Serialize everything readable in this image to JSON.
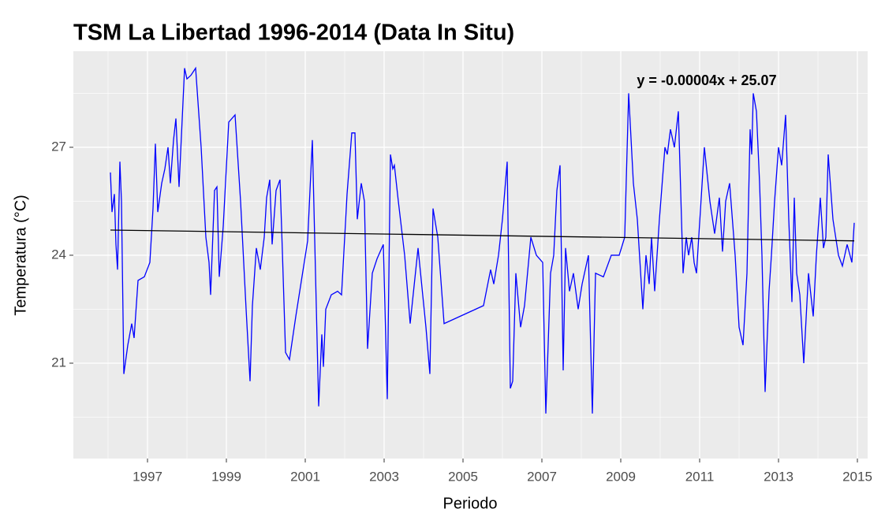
{
  "chart_data": {
    "type": "line",
    "title": "TSM La Libertad 1996-2014 (Data In Situ)",
    "x_label": "Periodo",
    "y_label": "Temperatura (°C)",
    "annotation": "y = -0.00004x + 25.07",
    "xlim": [
      1995.12,
      2015.26
    ],
    "ylim": [
      18.35,
      29.67
    ],
    "xticks": [
      1997,
      1999,
      2001,
      2003,
      2005,
      2007,
      2009,
      2011,
      2013,
      2015
    ],
    "x_minor_grid": [
      1996,
      1998,
      2000,
      2002,
      2004,
      2006,
      2008,
      2010,
      2012,
      2014
    ],
    "yticks": [
      21,
      24,
      27
    ],
    "y_minor_grid": [
      19.5,
      22.5,
      25.5,
      28.5
    ],
    "grid": true,
    "series": [
      {
        "color": "#0000ff",
        "x": [
          1996.06,
          1996.1,
          1996.16,
          1996.2,
          1996.24,
          1996.3,
          1996.34,
          1996.4,
          1996.5,
          1996.6,
          1996.66,
          1996.76,
          1996.92,
          1997.06,
          1997.14,
          1997.2,
          1997.26,
          1997.36,
          1997.44,
          1997.52,
          1997.58,
          1997.66,
          1997.72,
          1997.8,
          1997.94,
          1998.0,
          1998.1,
          1998.22,
          1998.36,
          1998.48,
          1998.56,
          1998.6,
          1998.7,
          1998.76,
          1998.82,
          1998.92,
          1999.06,
          1999.22,
          1999.36,
          1999.5,
          1999.6,
          1999.66,
          1999.76,
          1999.86,
          1999.96,
          2000.02,
          2000.1,
          2000.16,
          2000.26,
          2000.36,
          2000.42,
          2000.5,
          2000.6,
          2000.76,
          2001.06,
          2001.18,
          2001.34,
          2001.42,
          2001.46,
          2001.52,
          2001.66,
          2001.82,
          2001.92,
          2002.06,
          2002.18,
          2002.26,
          2002.32,
          2002.42,
          2002.5,
          2002.58,
          2002.7,
          2002.82,
          2002.98,
          2003.08,
          2003.16,
          2003.22,
          2003.26,
          2003.36,
          2003.52,
          2003.66,
          2003.86,
          2004.06,
          2004.16,
          2004.24,
          2004.36,
          2004.52,
          2005.52,
          2005.7,
          2005.78,
          2005.9,
          2006.0,
          2006.12,
          2006.2,
          2006.26,
          2006.34,
          2006.46,
          2006.56,
          2006.72,
          2006.86,
          2007.02,
          2007.1,
          2007.22,
          2007.3,
          2007.38,
          2007.46,
          2007.54,
          2007.6,
          2007.7,
          2007.8,
          2007.92,
          2008.02,
          2008.18,
          2008.28,
          2008.36,
          2008.56,
          2008.76,
          2008.96,
          2009.1,
          2009.2,
          2009.32,
          2009.42,
          2009.56,
          2009.64,
          2009.72,
          2009.78,
          2009.86,
          2009.98,
          2010.12,
          2010.18,
          2010.26,
          2010.36,
          2010.46,
          2010.58,
          2010.66,
          2010.72,
          2010.8,
          2010.86,
          2010.92,
          2011.12,
          2011.26,
          2011.38,
          2011.5,
          2011.58,
          2011.66,
          2011.76,
          2011.9,
          2012.0,
          2012.1,
          2012.2,
          2012.28,
          2012.32,
          2012.36,
          2012.44,
          2012.52,
          2012.58,
          2012.66,
          2012.76,
          2012.82,
          2012.9,
          2013.0,
          2013.08,
          2013.18,
          2013.26,
          2013.34,
          2013.4,
          2013.46,
          2013.54,
          2013.64,
          2013.76,
          2013.88,
          2013.96,
          2014.06,
          2014.14,
          2014.2,
          2014.26,
          2014.38,
          2014.52,
          2014.62,
          2014.74,
          2014.86,
          2014.92
        ],
        "values": [
          26.3,
          25.2,
          25.7,
          24.3,
          23.6,
          26.6,
          25.5,
          20.7,
          21.5,
          22.1,
          21.7,
          23.3,
          23.4,
          23.8,
          25.3,
          27.1,
          25.2,
          26.0,
          26.4,
          27.0,
          26.0,
          27.2,
          27.8,
          25.9,
          29.2,
          28.9,
          29.0,
          29.2,
          27.0,
          24.5,
          23.8,
          22.9,
          25.8,
          25.9,
          23.4,
          24.8,
          27.7,
          27.9,
          25.5,
          22.5,
          20.5,
          22.6,
          24.2,
          23.6,
          24.5,
          25.6,
          26.1,
          24.3,
          25.8,
          26.1,
          24.1,
          21.3,
          21.1,
          22.3,
          24.4,
          27.2,
          19.8,
          21.8,
          20.9,
          22.5,
          22.9,
          23.0,
          22.9,
          25.7,
          27.4,
          27.4,
          25.0,
          26.0,
          25.5,
          21.4,
          23.5,
          23.9,
          24.3,
          20.0,
          26.8,
          26.4,
          26.5,
          25.5,
          24.0,
          22.1,
          24.2,
          22.0,
          20.7,
          25.3,
          24.5,
          22.1,
          22.6,
          23.6,
          23.2,
          24.0,
          25.0,
          26.6,
          20.3,
          20.5,
          23.5,
          22.0,
          22.6,
          24.5,
          24.0,
          23.8,
          19.6,
          23.5,
          24.0,
          25.8,
          26.5,
          20.8,
          24.2,
          23.0,
          23.5,
          22.5,
          23.2,
          24.0,
          19.6,
          23.5,
          23.4,
          24.0,
          24.0,
          24.5,
          28.5,
          26.0,
          25.0,
          22.5,
          24.0,
          23.2,
          24.5,
          23.0,
          25.0,
          27.0,
          26.8,
          27.5,
          27.0,
          28.0,
          23.5,
          24.5,
          24.0,
          24.5,
          23.8,
          23.5,
          27.0,
          25.5,
          24.6,
          25.6,
          24.1,
          25.5,
          26.0,
          24.0,
          22.0,
          21.5,
          23.5,
          27.5,
          26.8,
          28.5,
          28.0,
          26.0,
          24.0,
          20.2,
          23.0,
          24.0,
          25.5,
          27.0,
          26.5,
          27.9,
          25.0,
          22.7,
          25.6,
          23.5,
          22.9,
          21.0,
          23.5,
          22.3,
          24.0,
          25.6,
          24.2,
          24.5,
          26.8,
          25.0,
          24.0,
          23.7,
          24.3,
          23.8,
          24.9
        ]
      },
      {
        "color": "#000000",
        "x": [
          1996.06,
          2014.92
        ],
        "values": [
          24.7,
          24.4
        ]
      }
    ]
  }
}
